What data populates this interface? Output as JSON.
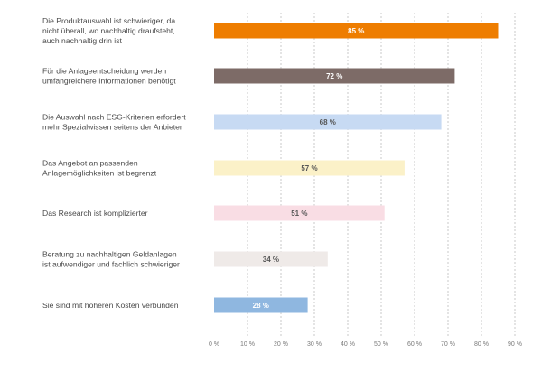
{
  "chart_data": {
    "type": "bar",
    "orientation": "horizontal",
    "categories": [
      [
        "Die Produktauswahl ist schwieriger, da",
        "nicht überall, wo nachhaltig draufsteht,",
        "auch nachhaltig drin ist"
      ],
      [
        "Für die Anlageentscheidung werden",
        "umfangreichere Informationen benötigt"
      ],
      [
        "Die Auswahl nach ESG-Kriterien erfordert",
        "mehr Spezialwissen seitens der Anbieter"
      ],
      [
        "Das Angebot an passenden",
        "Anlagemöglichkeiten ist begrenzt"
      ],
      [
        "Das Research ist komplizierter"
      ],
      [
        "Beratung zu nachhaltigen Geldanlagen",
        "ist aufwendiger und fachlich schwieriger"
      ],
      [
        "Sie sind mit höheren Kosten verbunden"
      ]
    ],
    "values": [
      85,
      72,
      68,
      57,
      51,
      34,
      28
    ],
    "value_labels": [
      "85 %",
      "72 %",
      "68 %",
      "57 %",
      "51 %",
      "34 %",
      "28 %"
    ],
    "bar_colors": [
      "#ee7d00",
      "#7d6b67",
      "#c7daf3",
      "#fbf1c8",
      "#f9dde4",
      "#efeae8",
      "#8fb7e0"
    ],
    "label_colors": [
      "#ffffff",
      "#ffffff",
      "#555555",
      "#555555",
      "#555555",
      "#555555",
      "#ffffff"
    ],
    "xlim": [
      0,
      90
    ],
    "x_ticks": [
      0,
      10,
      20,
      30,
      40,
      50,
      60,
      70,
      80,
      90
    ],
    "x_tick_labels": [
      "0 %",
      "10 %",
      "20 %",
      "30 %",
      "40 %",
      "50 %",
      "60 %",
      "70 %",
      "80 %",
      "90 %"
    ],
    "grid": true,
    "title": "",
    "xlabel": "",
    "ylabel": ""
  }
}
